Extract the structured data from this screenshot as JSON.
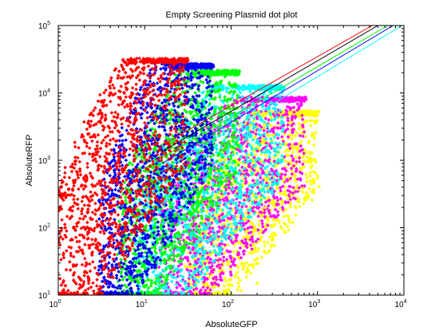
{
  "chart_data": {
    "type": "scatter",
    "title": "Empty Screening Plasmid dot plot",
    "xlabel": "AbsoluteGFP",
    "ylabel": "AbsoluteRFP",
    "xscale": "log",
    "yscale": "log",
    "xlim": [
      1,
      10000
    ],
    "ylim": [
      10,
      100000
    ],
    "x_ticks": [
      {
        "base": "10",
        "exp": "0",
        "value": 1
      },
      {
        "base": "10",
        "exp": "1",
        "value": 10
      },
      {
        "base": "10",
        "exp": "2",
        "value": 100
      },
      {
        "base": "10",
        "exp": "3",
        "value": 1000
      },
      {
        "base": "10",
        "exp": "4",
        "value": 10000
      }
    ],
    "y_ticks": [
      {
        "base": "10",
        "exp": "1",
        "value": 10
      },
      {
        "base": "10",
        "exp": "2",
        "value": 100
      },
      {
        "base": "10",
        "exp": "3",
        "value": 1000
      },
      {
        "base": "10",
        "exp": "4",
        "value": 10000
      },
      {
        "base": "10",
        "exp": "5",
        "value": 100000
      }
    ],
    "grid": false,
    "legend": "none",
    "marker": "diamond",
    "series": [
      {
        "color": "#ffff00",
        "description": "yellow cloud",
        "x_range": [
          30,
          1000
        ],
        "y_range": [
          10,
          5000
        ],
        "points": [
          [
            60,
            20
          ],
          [
            120,
            60
          ],
          [
            250,
            200
          ],
          [
            400,
            500
          ],
          [
            600,
            1500
          ],
          [
            150,
            30
          ],
          [
            300,
            80
          ],
          [
            500,
            300
          ],
          [
            800,
            1000
          ],
          [
            200,
            15
          ],
          [
            90,
            12
          ],
          [
            700,
            800
          ]
        ]
      },
      {
        "color": "#ff00ff",
        "description": "magenta cloud",
        "x_range": [
          15,
          700
        ],
        "y_range": [
          10,
          8000
        ],
        "points": [
          [
            40,
            30
          ],
          [
            80,
            100
          ],
          [
            150,
            300
          ],
          [
            250,
            1000
          ],
          [
            350,
            3000
          ],
          [
            60,
            15
          ],
          [
            120,
            40
          ],
          [
            200,
            200
          ],
          [
            300,
            700
          ],
          [
            100,
            20
          ],
          [
            180,
            500
          ]
        ]
      },
      {
        "color": "#00ffff",
        "description": "cyan cloud",
        "x_range": [
          8,
          400
        ],
        "y_range": [
          10,
          12000
        ],
        "points": [
          [
            15,
            50
          ],
          [
            25,
            200
          ],
          [
            50,
            500
          ],
          [
            80,
            1200
          ],
          [
            150,
            3000
          ],
          [
            20,
            20
          ],
          [
            35,
            80
          ],
          [
            60,
            300
          ],
          [
            100,
            800
          ],
          [
            30,
            15
          ],
          [
            120,
            2000
          ]
        ]
      },
      {
        "color": "#00ff00",
        "description": "green cloud",
        "x_range": [
          5,
          120
        ],
        "y_range": [
          10,
          20000
        ],
        "points": [
          [
            10,
            100
          ],
          [
            12,
            500
          ],
          [
            18,
            1500
          ],
          [
            25,
            4000
          ],
          [
            35,
            8000
          ],
          [
            8,
            30
          ],
          [
            14,
            60
          ],
          [
            20,
            300
          ],
          [
            40,
            2000
          ],
          [
            50,
            6000
          ],
          [
            12,
            15
          ]
        ]
      },
      {
        "color": "#0000ff",
        "description": "blue cloud",
        "x_range": [
          3,
          60
        ],
        "y_range": [
          10,
          25000
        ],
        "points": [
          [
            6,
            200
          ],
          [
            8,
            800
          ],
          [
            10,
            2500
          ],
          [
            12,
            6000
          ],
          [
            15,
            12000
          ],
          [
            5,
            50
          ],
          [
            7,
            20
          ],
          [
            9,
            400
          ],
          [
            20,
            3000
          ],
          [
            25,
            8000
          ],
          [
            4,
            15
          ]
        ]
      },
      {
        "color": "#ff0000",
        "description": "red cloud",
        "x_range": [
          1,
          30
        ],
        "y_range": [
          10,
          30000
        ],
        "points": [
          [
            1.5,
            500
          ],
          [
            2,
            2000
          ],
          [
            3,
            5000
          ],
          [
            4,
            10000
          ],
          [
            6,
            20000
          ],
          [
            1.2,
            100
          ],
          [
            2.5,
            300
          ],
          [
            5,
            1000
          ],
          [
            8,
            4000
          ],
          [
            10,
            15000
          ],
          [
            1.5,
            20
          ],
          [
            3,
            12
          ]
        ]
      }
    ],
    "fit_lines": [
      {
        "color": "#ff0000",
        "from": [
          16,
          1700
        ],
        "to": [
          4300,
          100000
        ]
      },
      {
        "color": "#000000",
        "from": [
          16,
          1350
        ],
        "to": [
          5000,
          100000
        ]
      },
      {
        "color": "#00ff00",
        "from": [
          16,
          1100
        ],
        "to": [
          6500,
          100000
        ]
      },
      {
        "color": "#0000ff",
        "from": [
          16,
          900
        ],
        "to": [
          7500,
          100000
        ]
      },
      {
        "color": "#00ffff",
        "from": [
          16,
          700
        ],
        "to": [
          9500,
          100000
        ]
      }
    ]
  }
}
